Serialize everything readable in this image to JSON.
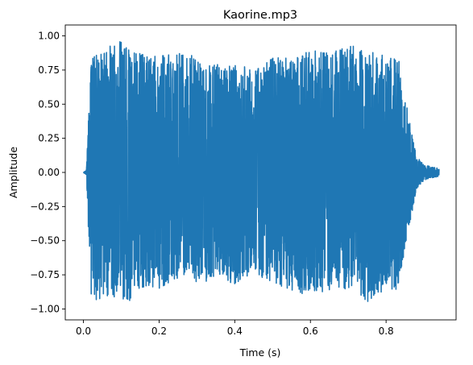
{
  "chart_data": {
    "type": "line",
    "title": "Kaorine.mp3",
    "xlabel": "Time (s)",
    "ylabel": "Amplitude",
    "xlim": [
      -0.048,
      0.985
    ],
    "ylim": [
      -1.08,
      1.08
    ],
    "xticks": [
      0.0,
      0.2,
      0.4,
      0.6,
      0.8
    ],
    "xtick_labels": [
      "0.0",
      "0.2",
      "0.4",
      "0.6",
      "0.8"
    ],
    "yticks": [
      -1.0,
      -0.75,
      -0.5,
      -0.25,
      0.0,
      0.25,
      0.5,
      0.75,
      1.0
    ],
    "ytick_labels": [
      "−1.00",
      "−0.75",
      "−0.50",
      "−0.25",
      "0.00",
      "0.25",
      "0.50",
      "0.75",
      "1.00"
    ],
    "grid": false,
    "series": [
      {
        "color": "#1f77b4",
        "t_range": [
          0.0,
          0.94
        ],
        "envelope": {
          "t": [
            0.0,
            0.008,
            0.02,
            0.05,
            0.09,
            0.12,
            0.15,
            0.2,
            0.25,
            0.3,
            0.35,
            0.4,
            0.45,
            0.5,
            0.55,
            0.6,
            0.65,
            0.7,
            0.75,
            0.8,
            0.83,
            0.86,
            0.87,
            0.88,
            0.9,
            0.92,
            0.94
          ],
          "max": [
            0.0,
            0.02,
            0.85,
            0.88,
            0.98,
            0.9,
            0.88,
            0.85,
            0.88,
            0.85,
            0.8,
            0.8,
            0.75,
            0.85,
            0.87,
            0.9,
            0.88,
            0.95,
            0.9,
            0.85,
            0.88,
            0.4,
            0.25,
            0.12,
            0.06,
            0.04,
            0.03
          ],
          "min": [
            0.0,
            -0.02,
            -0.95,
            -0.92,
            -0.92,
            -0.95,
            -0.88,
            -0.85,
            -0.8,
            -0.82,
            -0.78,
            -0.85,
            -0.75,
            -0.8,
            -0.88,
            -0.9,
            -0.88,
            -0.85,
            -0.95,
            -0.85,
            -0.88,
            -0.4,
            -0.28,
            -0.12,
            -0.06,
            -0.04,
            -0.03
          ]
        }
      }
    ]
  }
}
